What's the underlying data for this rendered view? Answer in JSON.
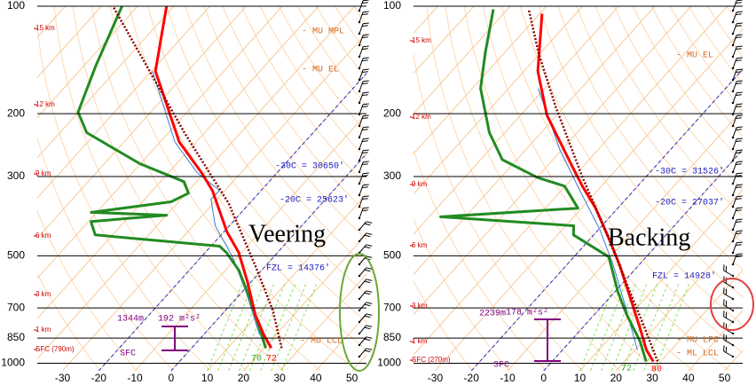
{
  "chart_data": [
    {
      "type": "skew-t",
      "log_y": true,
      "grid": true,
      "ylim": [
        1050,
        100
      ],
      "yticks": [
        100,
        200,
        300,
        500,
        700,
        850,
        1000
      ],
      "xlim": [
        -37,
        54
      ],
      "xticks": [
        -30,
        -20,
        -10,
        0,
        10,
        20,
        30,
        40,
        50
      ],
      "series": [
        {
          "color": "#3a7bd5",
          "style": "thin",
          "pressure": [
            833,
            633,
            504,
            412,
            347,
            328,
            293,
            240,
            152
          ],
          "values": [
            15.5,
            1.2,
            -11.3,
            -23.9,
            -31.7,
            -31.5,
            -42,
            -55.9,
            -79.7
          ]
        },
        {
          "color": "#228b22",
          "style": "thick",
          "pressure": [
            907,
            670,
            549,
            490,
            470,
            437,
            401,
            385,
            378,
            353,
            334,
            310,
            276,
            226,
            198,
            147,
            100
          ],
          "values": [
            20.5,
            4.7,
            -6.3,
            -14.1,
            -17.6,
            -54.8,
            -59.3,
            -40,
            -61.5,
            -42.1,
            -39.4,
            -43.5,
            -60.2,
            -82.6,
            -90.1,
            -96.7,
            -104.3
          ]
        },
        {
          "color": "#ff0000",
          "style": "thick",
          "pressure": [
            907,
            833,
            730,
            598,
            490,
            429,
            328,
            293,
            240,
            152,
            100
          ],
          "values": [
            22,
            16.7,
            9.2,
            -0.5,
            -10.7,
            -19.1,
            -33.5,
            -40.8,
            -54.7,
            -78.9,
            -92
          ]
        },
        {
          "color": "#8b0000",
          "style": "dotted",
          "pressure": [
            907,
            710,
            533,
            357,
            226,
            100
          ],
          "values": [
            24.9,
            13,
            -2.9,
            -25.7,
            -55.6,
            -106.8
          ]
        }
      ],
      "height_labels": [
        "15 km",
        "12 km",
        "9 km",
        "6 km",
        "3 km",
        "1 km",
        "SFC (790m)"
      ],
      "annotations": {
        "mu_mpl": "- MU MPL",
        "mu_el": "- MU EL",
        "t30": "-30C = 30650'",
        "t20": "-20C = 25623'",
        "fzl": "FZL = 14376'",
        "mu_lcl": "- MU LCL",
        "depth": "1344m",
        "srh": "192 m²s²",
        "sfc": "SFC",
        "td_f": "70",
        "t_f": "72",
        "label": "Veering"
      }
    },
    {
      "type": "skew-t",
      "log_y": true,
      "grid": true,
      "ylim": [
        1050,
        100
      ],
      "yticks": [
        100,
        200,
        300,
        500,
        700,
        850,
        1000
      ],
      "xlim": [
        -36,
        55
      ],
      "xticks": [
        -30,
        -20,
        -10,
        0,
        10,
        20,
        30,
        40,
        50
      ],
      "series": [
        {
          "color": "#3a7bd5",
          "style": "thin",
          "pressure": [
            918,
            710,
            533,
            424,
            338,
            254,
            170
          ],
          "values": [
            20.7,
            7.8,
            -6.9,
            -19.4,
            -33.1,
            -50.2,
            -71.8
          ]
        },
        {
          "color": "#228b22",
          "style": "thick",
          "pressure": [
            989,
            867,
            730,
            633,
            504,
            437,
            412,
            389,
            368,
            319,
            302,
            269,
            226,
            170,
            135,
            102
          ],
          "values": [
            26,
            19.2,
            8.9,
            1,
            -10.3,
            -25.6,
            -27.8,
            -66.8,
            -31,
            -40.2,
            -49.8,
            -64,
            -74.3,
            -87.7,
            -95.3,
            -103.9
          ]
        },
        {
          "color": "#ff0000",
          "style": "thick",
          "pressure": [
            989,
            918,
            796,
            670,
            533,
            449,
            368,
            319,
            269,
            202,
            152,
            105
          ],
          "values": [
            28,
            23.2,
            15.9,
            6.9,
            -5.1,
            -14.7,
            -26.1,
            -35.3,
            -45.6,
            -62.7,
            -76.2,
            -89.3
          ]
        },
        {
          "color": "#8b0000",
          "style": "dotted",
          "pressure": [
            989,
            796,
            598,
            449,
            301,
            191,
            135,
            102
          ],
          "values": [
            29.2,
            17.2,
            1.2,
            -14.7,
            -37.5,
            -62.5,
            -80.6,
            -94.1
          ]
        }
      ],
      "height_labels": [
        "15 km",
        "12 km",
        "9 km",
        "6 km",
        "3 km",
        "1 km",
        "SFC (270m)"
      ],
      "annotations": {
        "mu_el": "- MU EL",
        "t30": "-30C = 31526'",
        "t20": "-20C = 27037'",
        "fzl": "FZL = 14928'",
        "mu_lfc": "- MU LFC",
        "ml_lcl": "- ML LCL",
        "depth": "2239m",
        "srh": "178 m²s²",
        "sfc": "SFC",
        "td_f": "72",
        "t_f": "80",
        "label": "Backing"
      }
    }
  ]
}
